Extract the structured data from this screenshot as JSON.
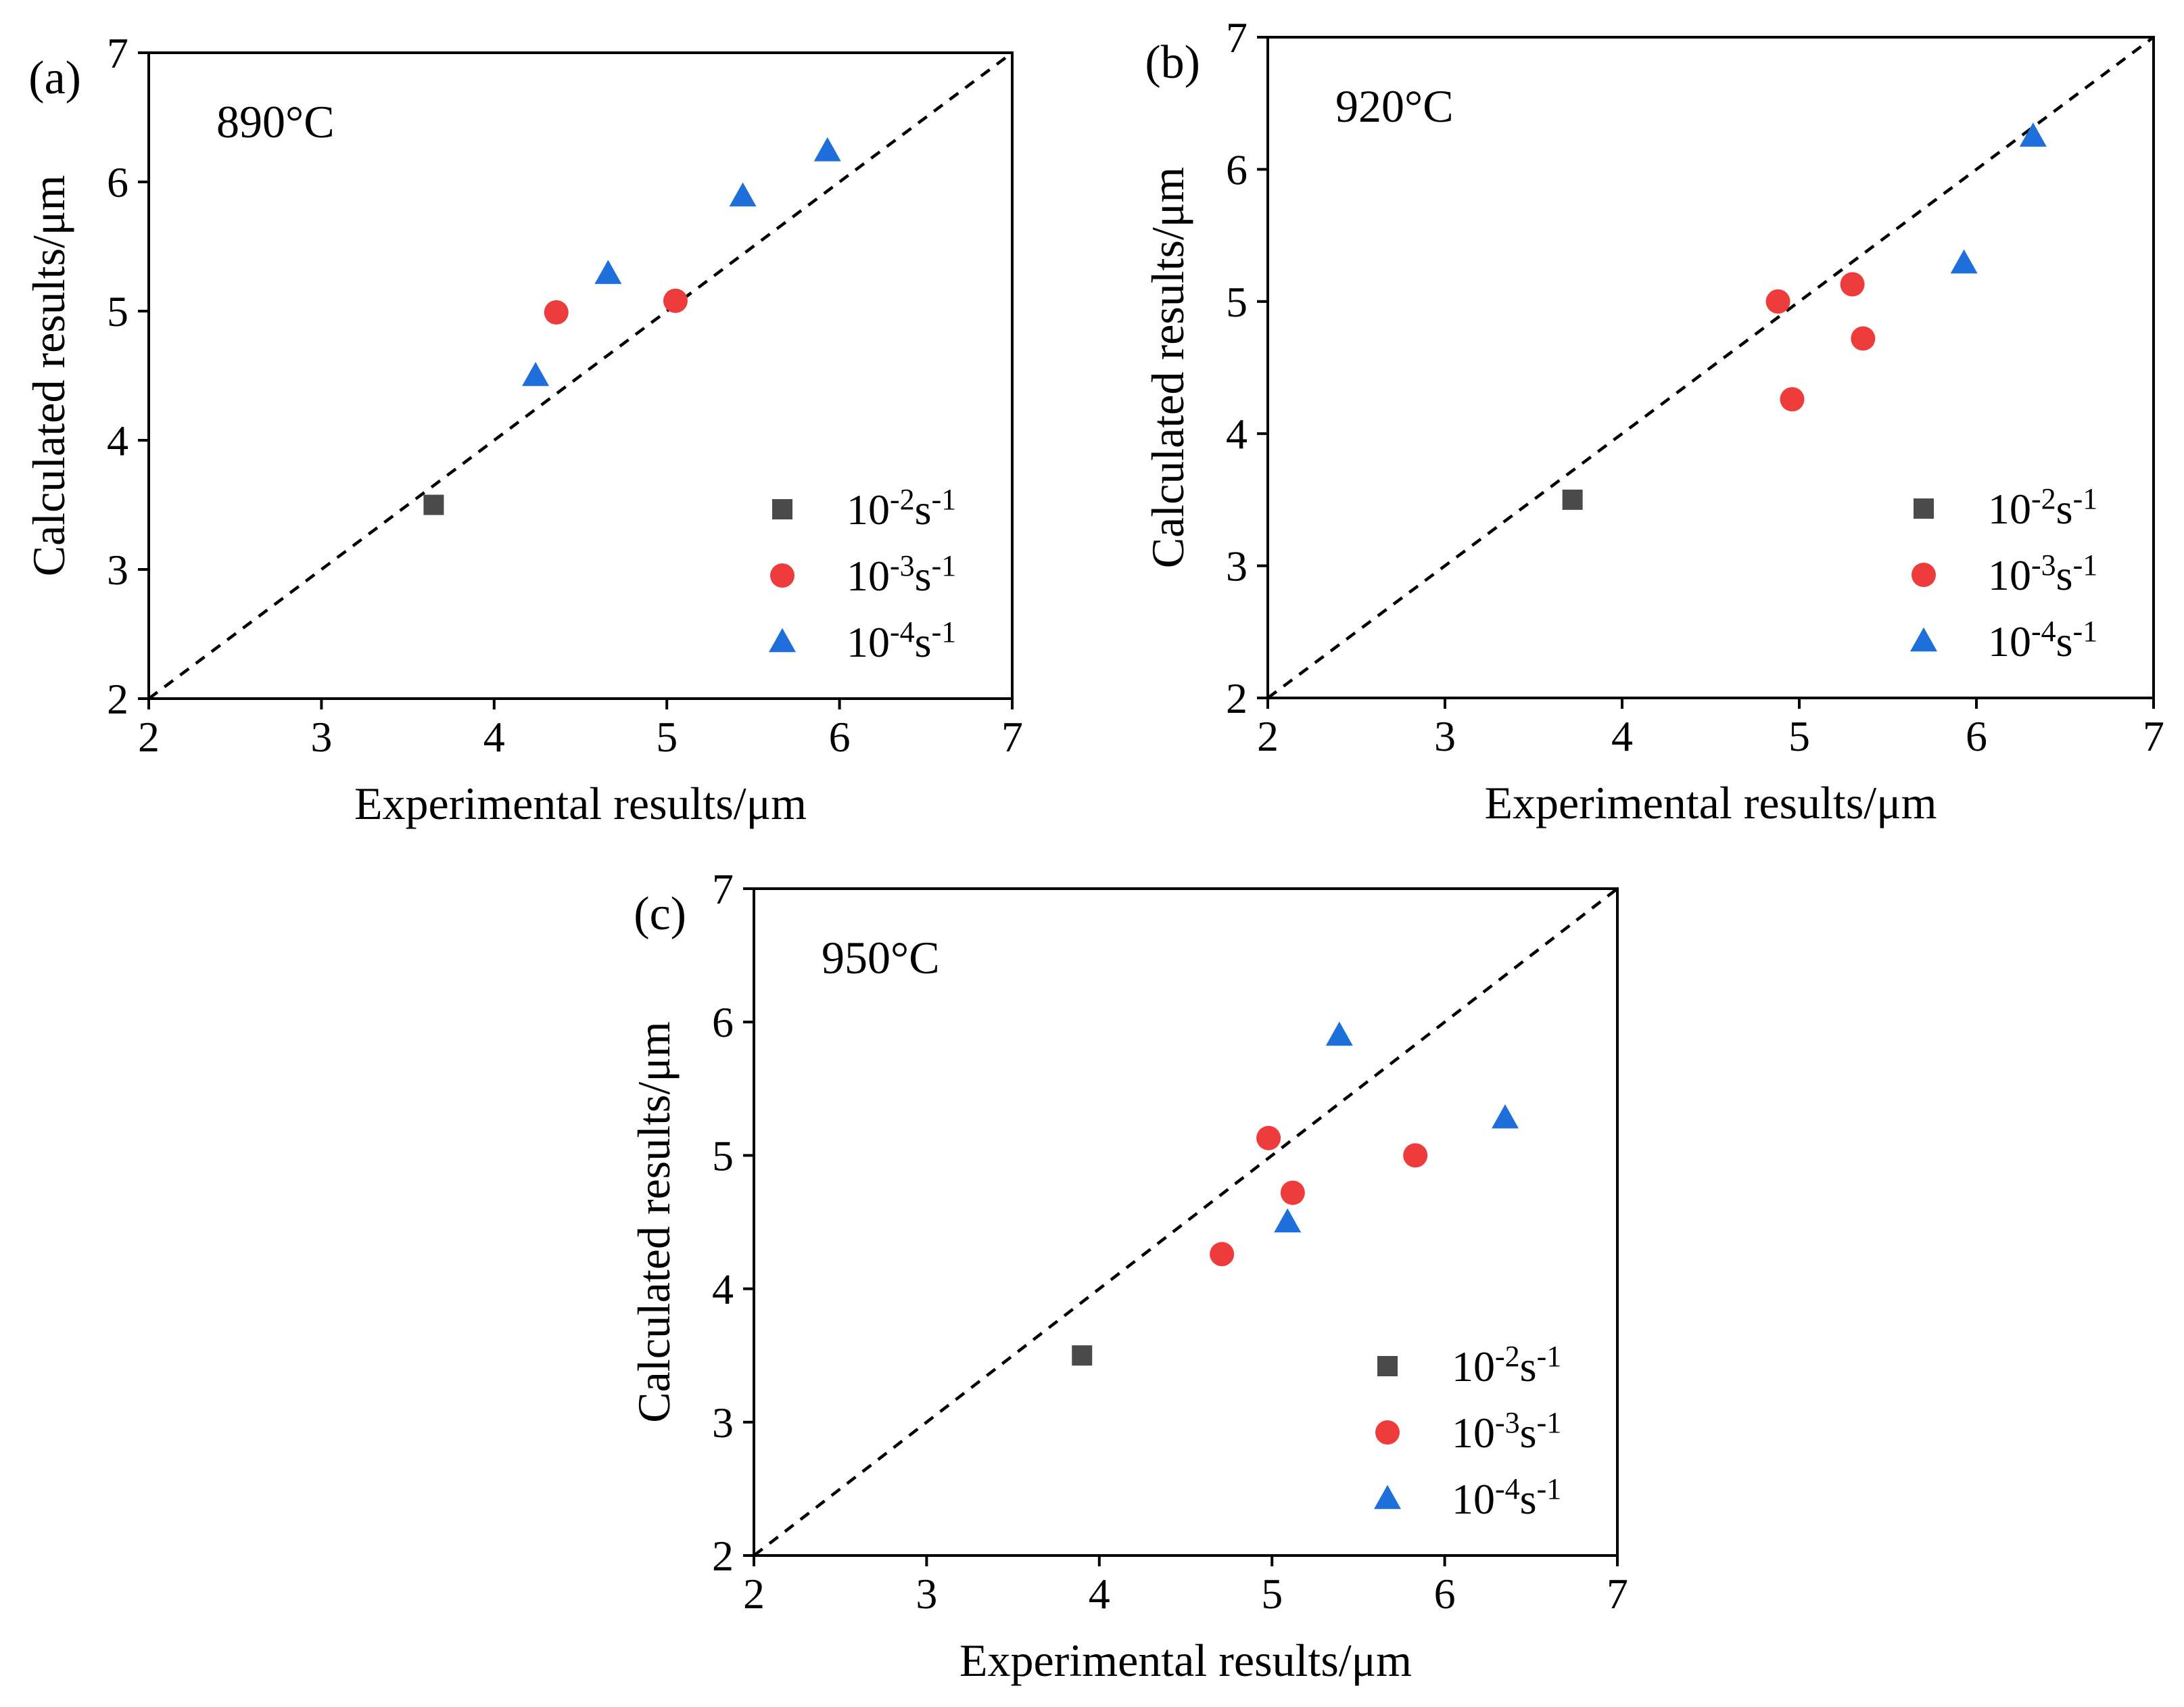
{
  "figure": {
    "xlabel": "Experimental results/μm",
    "ylabel": "Calculated results/μm"
  },
  "colors": {
    "strain_rate_1e-2": "#4a4a4a",
    "strain_rate_1e-3": "#ee3b3b",
    "strain_rate_1e-4": "#1f6fdb"
  },
  "chart_data": [
    {
      "type": "scatter",
      "panel_label": "(a)",
      "title": "890°C",
      "xlabel": "Experimental results/μm",
      "ylabel": "Calculated results/μm",
      "xlim": [
        2,
        7
      ],
      "ylim": [
        2,
        7
      ],
      "xticks": [
        "2",
        "3",
        "4",
        "5",
        "6",
        "7"
      ],
      "yticks": [
        "2",
        "3",
        "4",
        "5",
        "6",
        "7"
      ],
      "legend_position": "bottom-right",
      "reference_line": "y = x (dashed)",
      "series": [
        {
          "name": "10-2s-1",
          "marker": "square",
          "color": "#4a4a4a",
          "points": [
            [
              3.65,
              3.5
            ]
          ]
        },
        {
          "name": "10-3s-1",
          "marker": "circle",
          "color": "#ee3b3b",
          "points": [
            [
              4.36,
              4.99
            ],
            [
              5.05,
              5.08
            ]
          ]
        },
        {
          "name": "10-4s-1",
          "marker": "triangle",
          "color": "#1f6fdb",
          "points": [
            [
              4.24,
              4.5
            ],
            [
              4.66,
              5.29
            ],
            [
              5.44,
              5.89
            ],
            [
              5.93,
              6.24
            ]
          ]
        }
      ]
    },
    {
      "type": "scatter",
      "panel_label": "(b)",
      "title": "920°C",
      "xlabel": "Experimental results/μm",
      "ylabel": "Calculated results/μm",
      "xlim": [
        2,
        7
      ],
      "ylim": [
        2,
        7
      ],
      "xticks": [
        "2",
        "3",
        "4",
        "5",
        "6",
        "7"
      ],
      "yticks": [
        "2",
        "3",
        "4",
        "5",
        "6",
        "7"
      ],
      "legend_position": "bottom-right",
      "reference_line": "y = x (dashed)",
      "series": [
        {
          "name": "10-2s-1",
          "marker": "square",
          "color": "#4a4a4a",
          "points": [
            [
              3.72,
              3.5
            ]
          ]
        },
        {
          "name": "10-3s-1",
          "marker": "circle",
          "color": "#ee3b3b",
          "points": [
            [
              4.88,
              5.0
            ],
            [
              4.96,
              4.26
            ],
            [
              5.3,
              5.13
            ],
            [
              5.36,
              4.72
            ]
          ]
        },
        {
          "name": "10-4s-1",
          "marker": "triangle",
          "color": "#1f6fdb",
          "points": [
            [
              5.93,
              5.29
            ],
            [
              6.32,
              6.25
            ]
          ]
        }
      ]
    },
    {
      "type": "scatter",
      "panel_label": "(c)",
      "title": "950°C",
      "xlabel": "Experimental results/μm",
      "ylabel": "Calculated results/μm",
      "xlim": [
        2,
        7
      ],
      "ylim": [
        2,
        7
      ],
      "xticks": [
        "2",
        "3",
        "4",
        "5",
        "6",
        "7"
      ],
      "yticks": [
        "2",
        "3",
        "4",
        "5",
        "6",
        "7"
      ],
      "legend_position": "bottom-right",
      "reference_line": "y = x (dashed)",
      "series": [
        {
          "name": "10-2s-1",
          "marker": "square",
          "color": "#4a4a4a",
          "points": [
            [
              3.9,
              3.5
            ]
          ]
        },
        {
          "name": "10-3s-1",
          "marker": "circle",
          "color": "#ee3b3b",
          "points": [
            [
              4.71,
              4.26
            ],
            [
              4.98,
              5.13
            ],
            [
              5.12,
              4.72
            ],
            [
              5.83,
              5.0
            ]
          ]
        },
        {
          "name": "10-4s-1",
          "marker": "triangle",
          "color": "#1f6fdb",
          "points": [
            [
              5.09,
              4.5
            ],
            [
              5.39,
              5.9
            ],
            [
              6.35,
              5.28
            ]
          ]
        }
      ]
    }
  ]
}
